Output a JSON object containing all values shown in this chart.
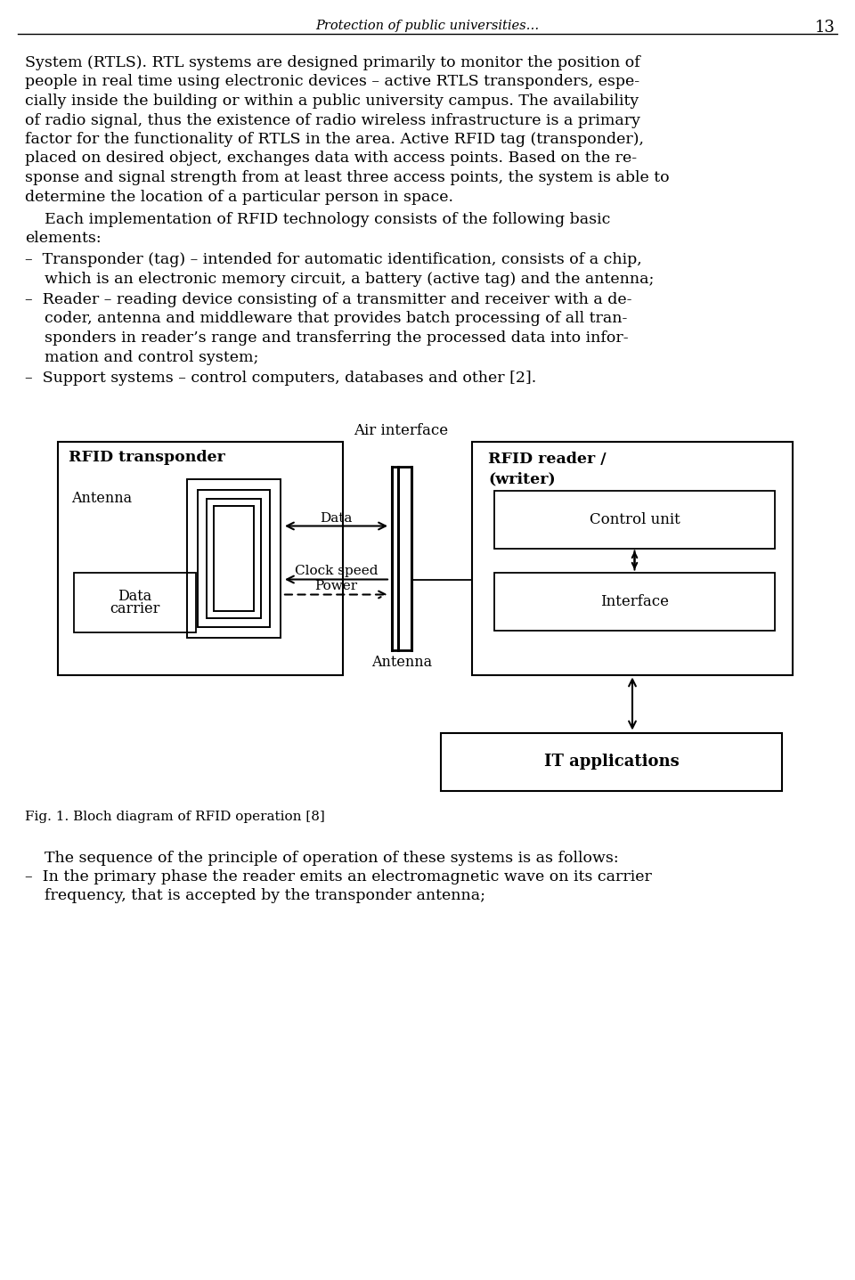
{
  "page_title": "Protection of public universities…",
  "page_number": "13",
  "background_color": "#ffffff",
  "text_color": "#000000",
  "fig_caption": "Fig. 1. Bloch diagram of RFID operation [8]",
  "para1_lines": [
    "System (RTLS). RTL systems are designed primarily to monitor the position of",
    "people in real time using electronic devices – active RTLS transponders, espe-",
    "cially inside the building or within a public university campus. The availability",
    "of radio signal, thus the existence of radio wireless infrastructure is a primary",
    "factor for the functionality of RTLS in the area. Active RFID tag (transponder),",
    "placed on desired object, exchanges data with access points. Based on the re-",
    "sponse and signal strength from at least three access points, the system is able to",
    "determine the location of a particular person in space."
  ],
  "para2_lines": [
    "    Each implementation of RFID technology consists of the following basic",
    "elements:"
  ],
  "bullet1_lines": [
    "–  Transponder (tag) – intended for automatic identification, consists of a chip,",
    "    which is an electronic memory circuit, a battery (active tag) and the antenna;"
  ],
  "bullet2_lines": [
    "–  Reader – reading device consisting of a transmitter and receiver with a de-",
    "    coder, antenna and middleware that provides batch processing of all tran-",
    "    sponders in reader’s range and transferring the processed data into infor-",
    "    mation and control system;"
  ],
  "bullet3_lines": [
    "–  Support systems – control computers, databases and other [2]."
  ],
  "bottom_lines": [
    "    The sequence of the principle of operation of these systems is as follows:",
    "–  In the primary phase the reader emits an electromagnetic wave on its carrier",
    "    frequency, that is accepted by the transponder antenna;"
  ]
}
